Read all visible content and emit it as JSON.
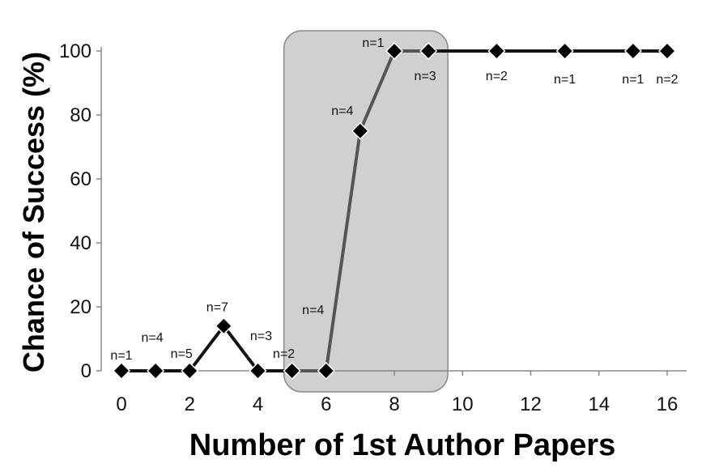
{
  "chart_data": {
    "type": "line",
    "xlabel": "Number of 1st Author Papers",
    "ylabel": "Chance of Success  (%)",
    "xlim": [
      0,
      16
    ],
    "ylim": [
      0,
      100
    ],
    "x_ticks": [
      0,
      2,
      4,
      6,
      8,
      10,
      12,
      14,
      16
    ],
    "y_ticks": [
      0,
      20,
      40,
      60,
      80,
      100
    ],
    "grid": false,
    "legend": "none",
    "series": [
      {
        "points": [
          {
            "x": 0,
            "y": 0,
            "label": "n=1"
          },
          {
            "x": 1,
            "y": 0,
            "label": "n=4"
          },
          {
            "x": 2,
            "y": 0,
            "label": "n=5"
          },
          {
            "x": 3,
            "y": 14,
            "label": "n=7"
          },
          {
            "x": 4,
            "y": 0,
            "label": "n=3"
          },
          {
            "x": 5,
            "y": 0,
            "label": "n=2"
          },
          {
            "x": 6,
            "y": 0,
            "label": "n=4"
          },
          {
            "x": 7,
            "y": 75,
            "label": "n=4"
          },
          {
            "x": 8,
            "y": 100,
            "label": "n=1"
          },
          {
            "x": 9,
            "y": 100,
            "label": "n=3"
          },
          {
            "x": 11,
            "y": 100,
            "label": "n=2"
          },
          {
            "x": 13,
            "y": 100,
            "label": "n=1"
          },
          {
            "x": 15,
            "y": 100,
            "label": "n=1"
          },
          {
            "x": 16,
            "y": 100,
            "label": "n=2"
          }
        ]
      }
    ],
    "highlight_region": {
      "x_from": 5,
      "x_to": 9
    },
    "colors": {
      "line": "#111111",
      "highlighted_line": "#555555",
      "marker": "#000000",
      "highlight_fill": "#d0d0d0",
      "highlight_stroke": "#8a8a8a",
      "axis": "#888888"
    }
  }
}
